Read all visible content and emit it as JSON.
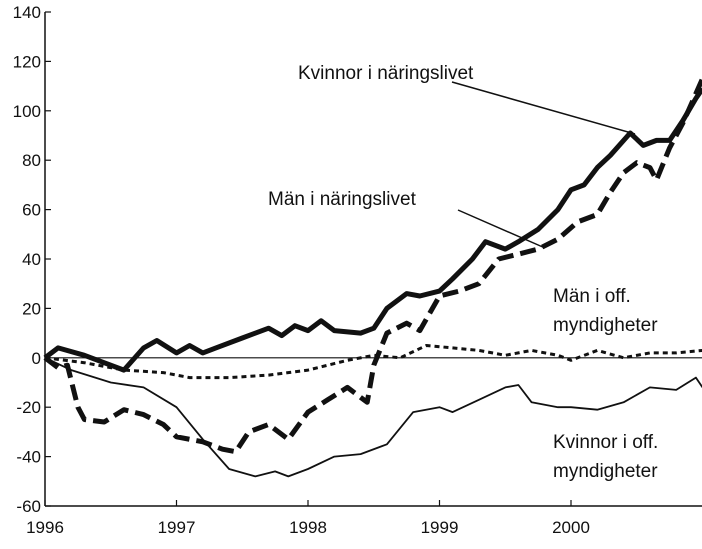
{
  "chart_data": {
    "type": "line",
    "title": "",
    "xlabel": "",
    "ylabel": "",
    "xlim": [
      1996,
      2001
    ],
    "ylim": [
      -60,
      140
    ],
    "x_ticks": [
      "1996",
      "1997",
      "1998",
      "1999",
      "2000"
    ],
    "y_ticks": [
      "140",
      "120",
      "100",
      "80",
      "60",
      "40",
      "20",
      "0",
      "-20",
      "-40",
      "-60"
    ],
    "grid": false,
    "series": [
      {
        "name": "Kvinnor i näringslivet",
        "style": "thick-solid",
        "x": [
          1996.0,
          1996.1,
          1996.3,
          1996.5,
          1996.6,
          1996.75,
          1996.85,
          1997.0,
          1997.1,
          1997.2,
          1997.3,
          1997.5,
          1997.7,
          1997.8,
          1997.9,
          1998.0,
          1998.1,
          1998.2,
          1998.4,
          1998.5,
          1998.6,
          1998.75,
          1998.85,
          1999.0,
          1999.1,
          1999.25,
          1999.35,
          1999.5,
          1999.6,
          1999.75,
          1999.9,
          2000.0,
          2000.1,
          2000.2,
          2000.3,
          2000.45,
          2000.55,
          2000.65,
          2000.75,
          2000.85,
          2000.95,
          2001.0
        ],
        "y": [
          0,
          4,
          1,
          -3,
          -5,
          4,
          7,
          2,
          5,
          2,
          4,
          8,
          12,
          9,
          13,
          11,
          15,
          11,
          10,
          12,
          20,
          26,
          25,
          27,
          32,
          40,
          47,
          44,
          47,
          52,
          60,
          68,
          70,
          77,
          82,
          91,
          86,
          88,
          88,
          96,
          105,
          109
        ]
      },
      {
        "name": "Män i näringslivet",
        "style": "thick-dashed",
        "x": [
          1996.0,
          1996.1,
          1996.17,
          1996.25,
          1996.3,
          1996.45,
          1996.6,
          1996.75,
          1996.9,
          1997.0,
          1997.2,
          1997.35,
          1997.45,
          1997.55,
          1997.7,
          1997.85,
          1998.0,
          1998.15,
          1998.3,
          1998.45,
          1998.5,
          1998.6,
          1998.75,
          1998.85,
          1999.0,
          1999.15,
          1999.3,
          1999.45,
          1999.6,
          1999.75,
          1999.9,
          2000.05,
          2000.2,
          2000.3,
          2000.4,
          2000.5,
          2000.6,
          2000.65,
          2000.75,
          2000.85,
          2001.0
        ],
        "y": [
          0,
          -4,
          -3,
          -20,
          -25,
          -26,
          -21,
          -23,
          -27,
          -32,
          -34,
          -37,
          -38,
          -30,
          -27,
          -33,
          -22,
          -17,
          -12,
          -18,
          -3,
          10,
          14,
          11,
          25,
          27,
          30,
          40,
          42,
          44,
          48,
          55,
          58,
          67,
          75,
          79,
          77,
          72,
          85,
          95,
          113
        ]
      },
      {
        "name": "Män i off. myndigheter",
        "style": "thin-dotted",
        "x": [
          1996.0,
          1996.3,
          1996.6,
          1996.9,
          1997.1,
          1997.4,
          1997.7,
          1998.0,
          1998.3,
          1998.5,
          1998.7,
          1998.9,
          1999.1,
          1999.3,
          1999.5,
          1999.7,
          1999.9,
          2000.0,
          2000.2,
          2000.4,
          2000.6,
          2000.8,
          2001.0
        ],
        "y": [
          0,
          -2,
          -5,
          -6,
          -8,
          -8,
          -7,
          -5,
          -1,
          1,
          0,
          5,
          4,
          3,
          1,
          3,
          1,
          -1,
          3,
          0,
          2,
          2,
          3
        ]
      },
      {
        "name": "Kvinnor i off. myndigheter",
        "style": "thin-solid",
        "x": [
          1996.0,
          1996.2,
          1996.5,
          1996.75,
          1997.0,
          1997.2,
          1997.4,
          1997.6,
          1997.75,
          1997.85,
          1998.0,
          1998.2,
          1998.4,
          1998.6,
          1998.8,
          1999.0,
          1999.1,
          1999.3,
          1999.5,
          1999.6,
          1999.7,
          1999.9,
          2000.0,
          2000.2,
          2000.4,
          2000.6,
          2000.8,
          2000.95,
          2001.0
        ],
        "y": [
          0,
          -5,
          -10,
          -12,
          -20,
          -33,
          -45,
          -48,
          -46,
          -48,
          -45,
          -40,
          -39,
          -35,
          -22,
          -20,
          -22,
          -17,
          -12,
          -11,
          -18,
          -20,
          -20,
          -21,
          -18,
          -12,
          -13,
          -8,
          -12
        ]
      }
    ],
    "annotations": [
      {
        "text": "Kvinnor i näringslivet",
        "series": 0
      },
      {
        "text": "Män i näringslivet",
        "series": 1
      },
      {
        "text": "Män i off.",
        "text2": "myndigheter",
        "series": 2
      },
      {
        "text": "Kvinnor i off.",
        "text2": "myndigheter",
        "series": 3
      }
    ]
  }
}
